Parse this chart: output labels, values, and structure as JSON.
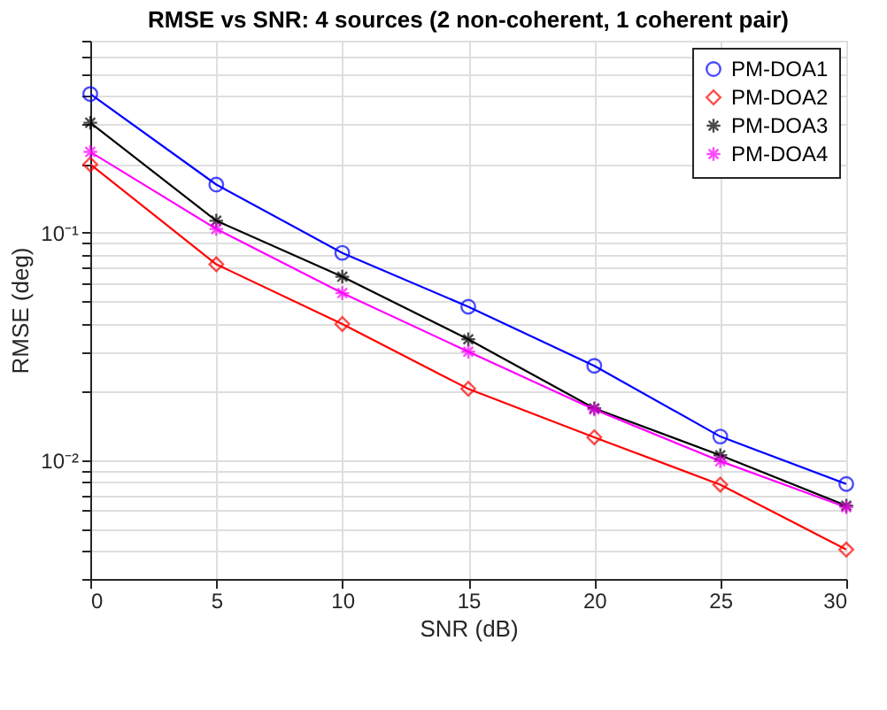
{
  "chart_data": {
    "type": "line",
    "title": "RMSE vs SNR: 4 sources (2 non-coherent, 1 coherent pair)",
    "xlabel": "SNR (dB)",
    "ylabel": "RMSE (deg)",
    "x": [
      0,
      5,
      10,
      15,
      20,
      25,
      30
    ],
    "series": [
      {
        "name": "PM-DOA1",
        "color": "#0000ff",
        "marker": "circle",
        "values": [
          0.408,
          0.163,
          0.0816,
          0.0473,
          0.026,
          0.0127,
          0.00785
        ]
      },
      {
        "name": "PM-DOA2",
        "color": "#ff0000",
        "marker": "diamond",
        "values": [
          0.2,
          0.0727,
          0.0397,
          0.0206,
          0.0126,
          0.0078,
          0.00404
        ]
      },
      {
        "name": "PM-DOA3",
        "color": "#000000",
        "marker": "cross",
        "values": [
          0.305,
          0.113,
          0.0641,
          0.034,
          0.0169,
          0.0105,
          0.0063
        ]
      },
      {
        "name": "PM-DOA4",
        "color": "#ff00ff",
        "marker": "cross",
        "values": [
          0.227,
          0.104,
          0.0543,
          0.03,
          0.0167,
          0.0099,
          0.0062
        ]
      }
    ],
    "log": "y",
    "xlim": [
      0,
      30
    ],
    "xticks": [
      0,
      5,
      10,
      15,
      20,
      25,
      30
    ],
    "ylim": [
      0.003,
      0.7
    ],
    "yticks": [
      {
        "value": 0.003,
        "label": null
      },
      {
        "value": 0.004,
        "label": null
      },
      {
        "value": 0.005,
        "label": null
      },
      {
        "value": 0.006,
        "label": null
      },
      {
        "value": 0.007,
        "label": null
      },
      {
        "value": 0.008,
        "label": null
      },
      {
        "value": 0.009,
        "label": null
      },
      {
        "value": 0.01,
        "label": "10⁻²"
      },
      {
        "value": 0.02,
        "label": null
      },
      {
        "value": 0.03,
        "label": null
      },
      {
        "value": 0.04,
        "label": null
      },
      {
        "value": 0.05,
        "label": null
      },
      {
        "value": 0.06,
        "label": null
      },
      {
        "value": 0.07,
        "label": null
      },
      {
        "value": 0.08,
        "label": null
      },
      {
        "value": 0.09,
        "label": null
      },
      {
        "value": 0.1,
        "label": "10⁻¹"
      },
      {
        "value": 0.2,
        "label": null
      },
      {
        "value": 0.3,
        "label": null
      },
      {
        "value": 0.4,
        "label": null
      },
      {
        "value": 0.5,
        "label": null
      },
      {
        "value": 0.6,
        "label": null
      },
      {
        "value": 0.7,
        "label": null
      }
    ],
    "grid": true,
    "legend": "top right",
    "line_style": "solid"
  }
}
